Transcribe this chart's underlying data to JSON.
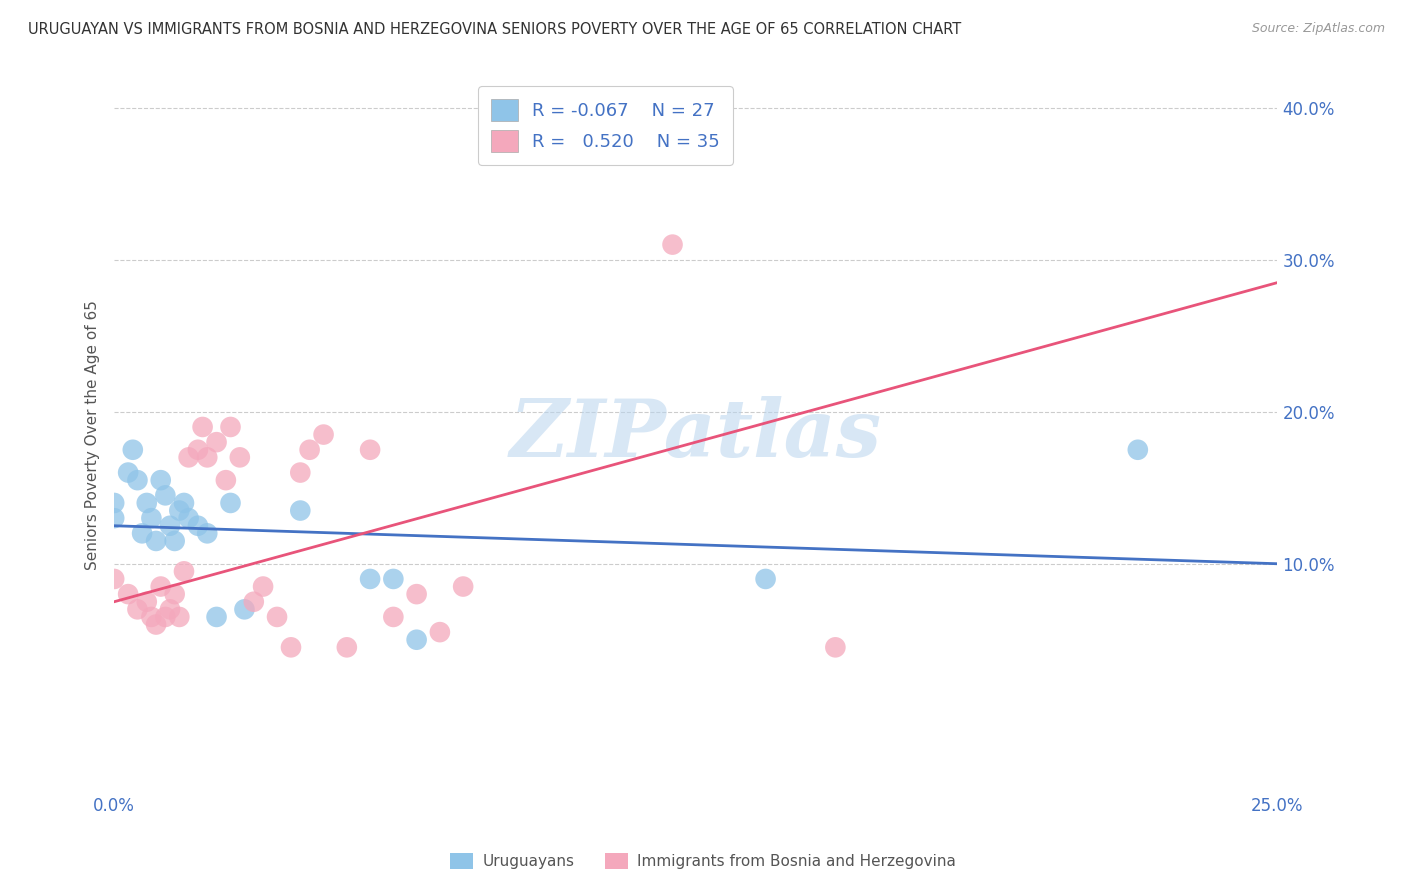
{
  "title": "URUGUAYAN VS IMMIGRANTS FROM BOSNIA AND HERZEGOVINA SENIORS POVERTY OVER THE AGE OF 65 CORRELATION CHART",
  "source": "Source: ZipAtlas.com",
  "ylabel": "Seniors Poverty Over the Age of 65",
  "xlim": [
    0.0,
    0.25
  ],
  "ylim": [
    -0.05,
    0.42
  ],
  "x_ticks": [
    0.0,
    0.05,
    0.1,
    0.15,
    0.2,
    0.25
  ],
  "x_tick_labels": [
    "0.0%",
    "",
    "",
    "",
    "",
    "25.0%"
  ],
  "y_ticks_right": [
    0.1,
    0.2,
    0.3,
    0.4
  ],
  "y_tick_labels_right": [
    "10.0%",
    "20.0%",
    "30.0%",
    "40.0%"
  ],
  "grid_color": "#cccccc",
  "background_color": "#ffffff",
  "watermark": "ZIPatlas",
  "color_blue": "#8fc4e8",
  "color_pink": "#f4a8bc",
  "line_color_blue": "#4472c4",
  "line_color_pink": "#e8547a",
  "uruguayan_x": [
    0.0,
    0.0,
    0.003,
    0.004,
    0.005,
    0.006,
    0.007,
    0.008,
    0.009,
    0.01,
    0.011,
    0.012,
    0.013,
    0.014,
    0.015,
    0.016,
    0.018,
    0.02,
    0.022,
    0.025,
    0.028,
    0.04,
    0.055,
    0.06,
    0.065,
    0.14,
    0.22
  ],
  "uruguayan_y": [
    0.13,
    0.14,
    0.16,
    0.175,
    0.155,
    0.12,
    0.14,
    0.13,
    0.115,
    0.155,
    0.145,
    0.125,
    0.115,
    0.135,
    0.14,
    0.13,
    0.125,
    0.12,
    0.065,
    0.14,
    0.07,
    0.135,
    0.09,
    0.09,
    0.05,
    0.09,
    0.175
  ],
  "bosnian_x": [
    0.0,
    0.003,
    0.005,
    0.007,
    0.008,
    0.009,
    0.01,
    0.011,
    0.012,
    0.013,
    0.014,
    0.015,
    0.016,
    0.018,
    0.019,
    0.02,
    0.022,
    0.024,
    0.025,
    0.027,
    0.03,
    0.032,
    0.035,
    0.038,
    0.04,
    0.042,
    0.045,
    0.05,
    0.055,
    0.06,
    0.065,
    0.07,
    0.075,
    0.12,
    0.155
  ],
  "bosnian_y": [
    0.09,
    0.08,
    0.07,
    0.075,
    0.065,
    0.06,
    0.085,
    0.065,
    0.07,
    0.08,
    0.065,
    0.095,
    0.17,
    0.175,
    0.19,
    0.17,
    0.18,
    0.155,
    0.19,
    0.17,
    0.075,
    0.085,
    0.065,
    0.045,
    0.16,
    0.175,
    0.185,
    0.045,
    0.175,
    0.065,
    0.08,
    0.055,
    0.085,
    0.31,
    0.045
  ],
  "blue_line_x0": 0.0,
  "blue_line_x1": 0.25,
  "blue_line_y0": 0.125,
  "blue_line_y1": 0.1,
  "pink_line_x0": 0.0,
  "pink_line_x1": 0.25,
  "pink_line_y0": 0.075,
  "pink_line_y1": 0.285,
  "legend_text": [
    [
      "R = -0.067",
      "N = 27"
    ],
    [
      "R =  0.520",
      "N = 35"
    ]
  ],
  "bottom_legend": [
    "Uruguayans",
    "Immigrants from Bosnia and Herzegovina"
  ]
}
